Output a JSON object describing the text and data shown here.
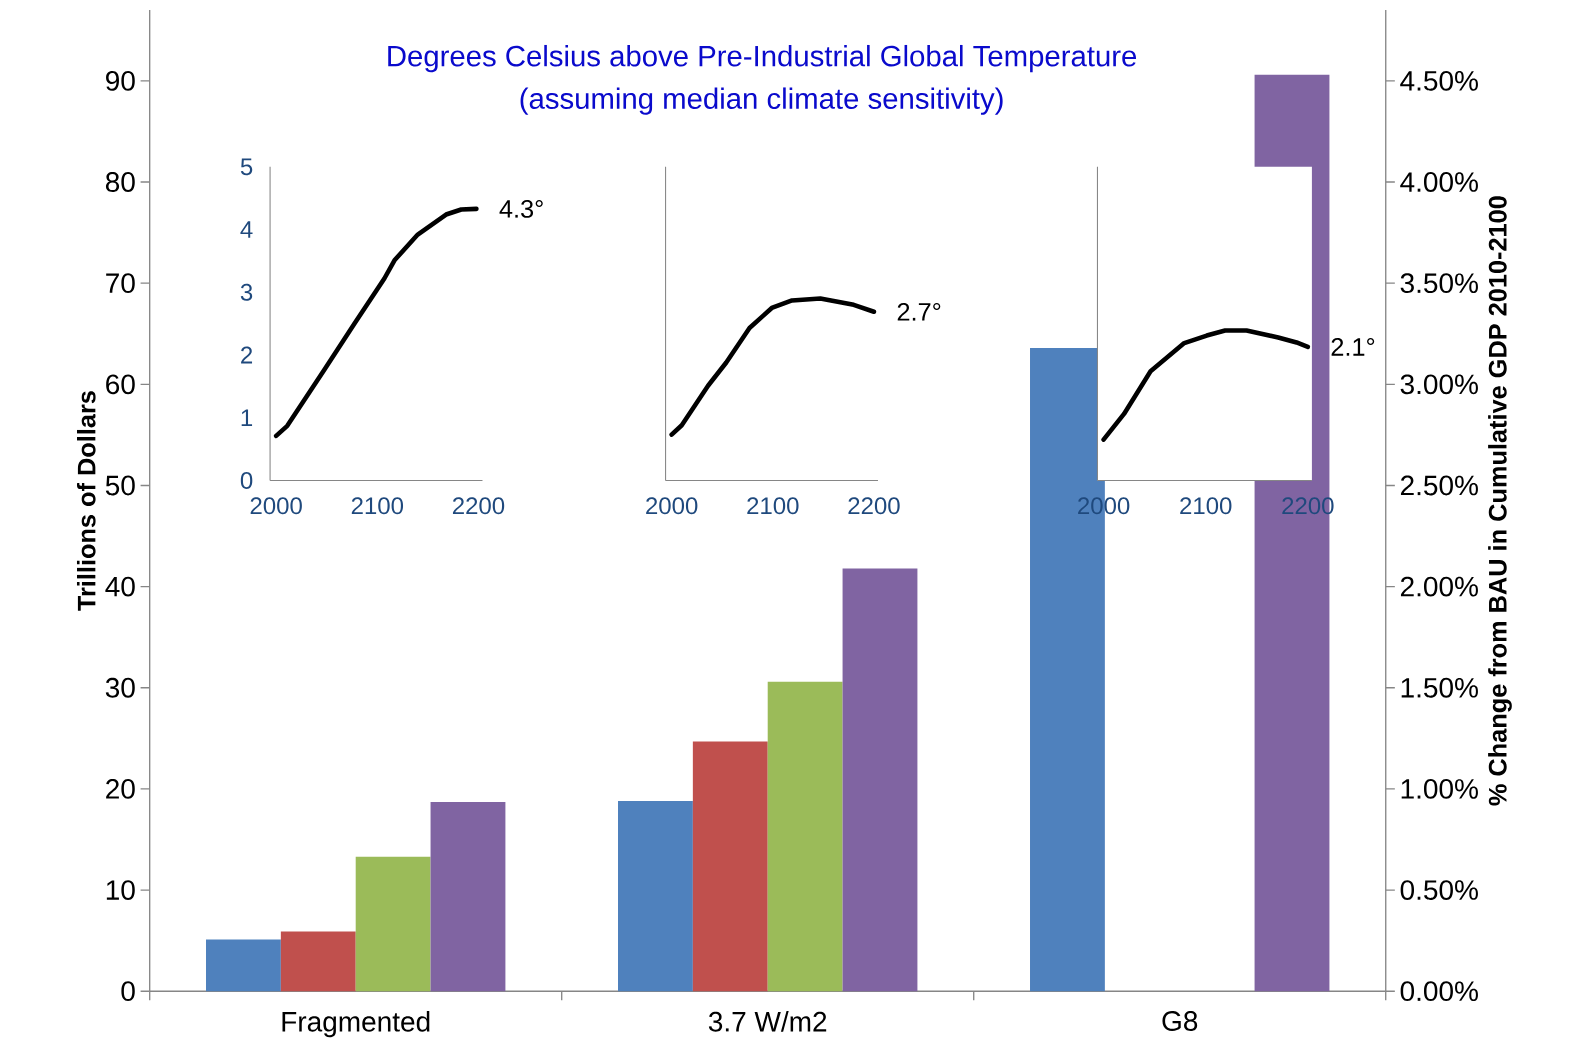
{
  "chart_data": [
    {
      "type": "bar",
      "title": "Degrees Celsius above Pre-Industrial Global Temperature",
      "subtitle": "(assuming median climate sensitivity)",
      "categories": [
        "Fragmented",
        "3.7 W/m2",
        "G8"
      ],
      "series": [
        {
          "color": "#4f81bd",
          "values": [
            5.1,
            18.8,
            63.6
          ]
        },
        {
          "color": "#c0504d",
          "values": [
            5.9,
            24.7,
            null
          ]
        },
        {
          "color": "#9bbb59",
          "values": [
            13.3,
            30.6,
            null
          ]
        },
        {
          "color": "#8064a2",
          "values": [
            18.7,
            41.8,
            90.6
          ]
        }
      ],
      "ylabel": "Trillions of Dollars",
      "y2label": "% Change from BAU in Cumulative GDP 2010-2100",
      "ylim": [
        0,
        97
      ],
      "yticks": [
        0,
        10,
        20,
        30,
        40,
        50,
        60,
        70,
        80,
        90
      ],
      "y2lim": [
        0,
        4.85
      ],
      "y2ticks": [
        {
          "value": 0,
          "label": "0.00%"
        },
        {
          "value": 0.5,
          "label": "0.50%"
        },
        {
          "value": 1,
          "label": "1.00%"
        },
        {
          "value": 1.5,
          "label": "1.50%"
        },
        {
          "value": 2,
          "label": "2.00%"
        },
        {
          "value": 2.5,
          "label": "2.50%"
        },
        {
          "value": 3,
          "label": "3.00%"
        },
        {
          "value": 3.5,
          "label": "3.50%"
        },
        {
          "value": 4,
          "label": "4.00%"
        },
        {
          "value": 4.5,
          "label": "4.50%"
        }
      ]
    },
    {
      "type": "line",
      "color": "#000000",
      "x": [
        2000,
        2011,
        2047,
        2077,
        2107,
        2117,
        2140,
        2168,
        2183,
        2198
      ],
      "values": [
        0.71,
        0.87,
        1.75,
        2.49,
        3.22,
        3.51,
        3.92,
        4.24,
        4.32,
        4.33
      ],
      "xlim": [
        1994,
        2204
      ],
      "ylim": [
        0,
        5
      ],
      "xticks": [
        2000,
        2100,
        2200
      ],
      "yticks": [
        0,
        1,
        2,
        3,
        4,
        5
      ],
      "annotations": [
        "4.3°"
      ]
    },
    {
      "type": "line",
      "color": "#000000",
      "x": [
        2000,
        2010,
        2036,
        2054,
        2077,
        2099,
        2119,
        2147,
        2180,
        2200
      ],
      "values": [
        0.73,
        0.88,
        1.51,
        1.88,
        2.43,
        2.75,
        2.87,
        2.9,
        2.8,
        2.69
      ],
      "xlim": [
        1994,
        2204
      ],
      "ylim": [
        0,
        5
      ],
      "xticks": [
        2000,
        2100,
        2200
      ],
      "tick_labels": "x",
      "annotations": [
        "2.7°"
      ]
    },
    {
      "type": "line",
      "color": "#000000",
      "x": [
        2000,
        2020,
        2046,
        2079,
        2101,
        2119,
        2140,
        2171,
        2189,
        2200
      ],
      "values": [
        0.65,
        1.06,
        1.74,
        2.19,
        2.31,
        2.39,
        2.39,
        2.28,
        2.2,
        2.13
      ],
      "xlim": [
        1994,
        2204
      ],
      "ylim": [
        0,
        5
      ],
      "xticks": [
        2000,
        2100,
        2200
      ],
      "tick_labels": "x",
      "annotations": [
        "2.1°"
      ]
    }
  ]
}
